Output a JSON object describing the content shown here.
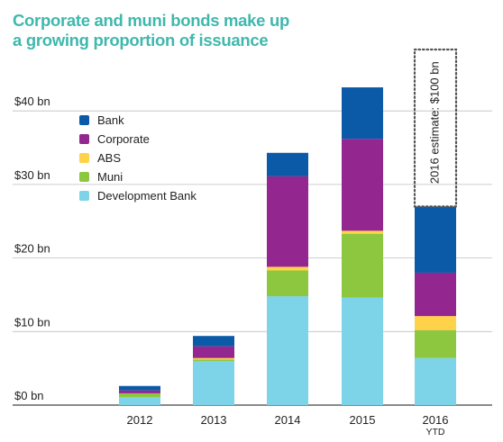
{
  "chart_data": {
    "type": "bar",
    "stacked": true,
    "title": "Corporate and muni bonds make up a growing proportion of issuance",
    "title_lines": [
      "Corporate and muni bonds make up",
      "a growing proportion of issuance"
    ],
    "categories": [
      "2012",
      "2013",
      "2014",
      "2015",
      "2016"
    ],
    "category_sublabels": [
      "",
      "",
      "",
      "",
      "YTD"
    ],
    "y_tick_labels": [
      "$0 bn",
      "$10 bn",
      "$20 bn",
      "$30 bn",
      "$40 bn"
    ],
    "y_ticks": [
      0,
      10,
      20,
      30,
      40
    ],
    "ylim": [
      0,
      43
    ],
    "grid": true,
    "legend_position": "top-left",
    "series": [
      {
        "name": "Development Bank",
        "color": "#7dd3e8",
        "values": [
          1.1,
          6.0,
          14.8,
          14.6,
          6.4
        ]
      },
      {
        "name": "Muni",
        "color": "#8dc63f",
        "values": [
          0.5,
          0.2,
          3.5,
          8.7,
          3.8
        ]
      },
      {
        "name": "ABS",
        "color": "#ffd24a",
        "values": [
          0.0,
          0.2,
          0.5,
          0.4,
          1.9
        ]
      },
      {
        "name": "Corporate",
        "color": "#93278f",
        "values": [
          0.4,
          1.6,
          12.3,
          12.5,
          5.9
        ]
      },
      {
        "name": "Bank",
        "color": "#0b5aa8",
        "values": [
          0.6,
          1.4,
          3.2,
          7.0,
          9.0
        ]
      }
    ],
    "legend_order": [
      "Bank",
      "Corporate",
      "ABS",
      "Muni",
      "Development Bank"
    ],
    "annotation": {
      "text": "2016 estimate: $100 bn",
      "category": "2016"
    }
  }
}
